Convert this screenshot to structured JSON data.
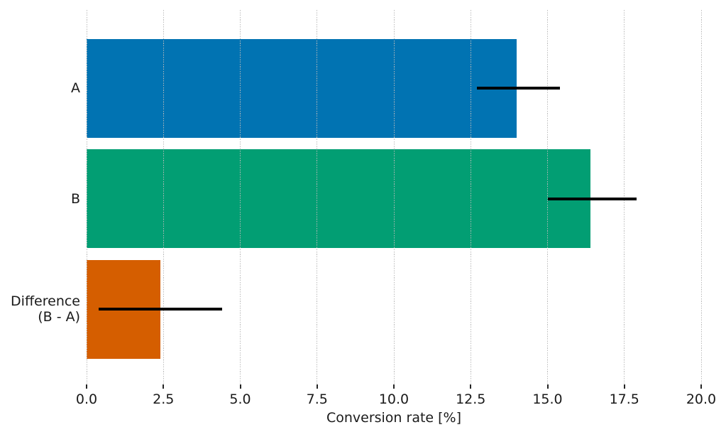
{
  "chart_data": {
    "type": "bar",
    "orientation": "horizontal",
    "title": "",
    "xlabel": "Conversion rate [%]",
    "ylabel": "",
    "categories": [
      "A",
      "B",
      "Difference (B - A)"
    ],
    "category_label_lines": [
      [
        "A"
      ],
      [
        "B"
      ],
      [
        "Difference",
        "(B - A)"
      ]
    ],
    "values": [
      14.0,
      16.4,
      2.4
    ],
    "error_bars": {
      "low": [
        12.7,
        15.0,
        0.4
      ],
      "high": [
        15.4,
        17.9,
        4.4
      ]
    },
    "bar_colors": [
      "#0173b2",
      "#029e73",
      "#d55e00"
    ],
    "error_bar_color": "#000000",
    "xlim": [
      0.0,
      20.5
    ],
    "xticks": [
      0.0,
      2.5,
      5.0,
      7.5,
      10.0,
      12.5,
      15.0,
      17.5,
      20.0
    ],
    "xtick_labels": [
      "0.0",
      "2.5",
      "5.0",
      "7.5",
      "10.0",
      "12.5",
      "15.0",
      "17.5",
      "20.0"
    ],
    "grid": "x-only-dotted",
    "legend": "none",
    "spines": "none"
  }
}
